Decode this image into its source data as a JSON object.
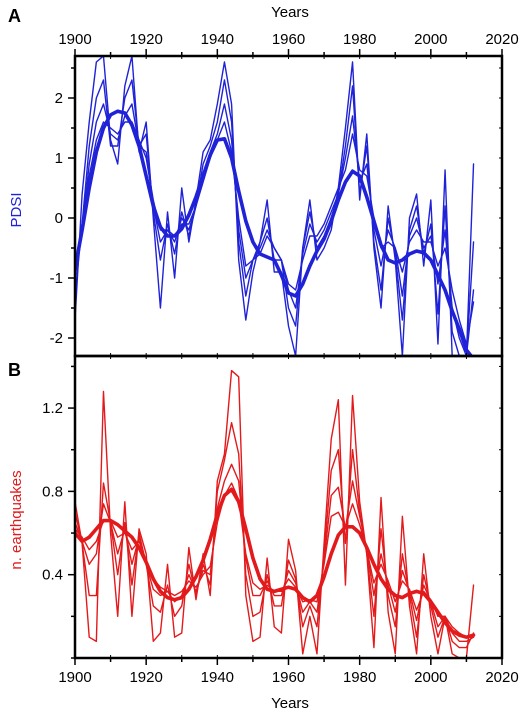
{
  "chart_data": [
    {
      "panel": "A",
      "type": "line",
      "xlabel": "Years",
      "ylabel": "PDSI",
      "xlim": [
        1900,
        2020
      ],
      "ylim": [
        -2.3,
        2.7
      ],
      "x_ticks": [
        1900,
        1920,
        1940,
        1960,
        1980,
        2000,
        2020
      ],
      "y_ticks": [
        -2,
        -1,
        0,
        1,
        2
      ],
      "grid": false,
      "color": "#1f22d6",
      "x": [
        1900,
        1902,
        1904,
        1906,
        1908,
        1910,
        1912,
        1914,
        1916,
        1918,
        1920,
        1922,
        1924,
        1926,
        1928,
        1930,
        1932,
        1934,
        1936,
        1938,
        1940,
        1942,
        1944,
        1946,
        1948,
        1950,
        1952,
        1954,
        1956,
        1958,
        1960,
        1962,
        1964,
        1966,
        1968,
        1970,
        1972,
        1974,
        1976,
        1978,
        1980,
        1982,
        1984,
        1986,
        1988,
        1990,
        1992,
        1994,
        1996,
        1998,
        2000,
        2002,
        2004,
        2006,
        2008,
        2010,
        2012
      ],
      "series": [
        {
          "values": [
            -1.7,
            0.4,
            1.6,
            2.6,
            2.7,
            1.3,
            0.9,
            2.2,
            2.7,
            1.1,
            1.6,
            0.0,
            -1.5,
            0.1,
            -1.0,
            0.5,
            -0.4,
            0.3,
            1.1,
            1.3,
            1.9,
            2.6,
            1.9,
            -0.7,
            -1.7,
            -0.9,
            -0.4,
            0.3,
            -0.9,
            -0.9,
            -1.8,
            -2.3,
            -0.5,
            0.3,
            -0.7,
            -0.5,
            -0.2,
            0.5,
            1.5,
            2.6,
            0.3,
            1.4,
            -0.5,
            -1.5,
            0.2,
            -0.7,
            -2.3,
            0.0,
            0.4,
            -0.8,
            0.3,
            -2.1,
            0.8,
            -2.3,
            -2.3,
            -2.3,
            0.9
          ]
        },
        {
          "values": [
            -1.3,
            -0.1,
            1.2,
            2.0,
            2.3,
            1.2,
            1.2,
            2.0,
            2.3,
            1.2,
            1.4,
            0.1,
            -0.7,
            -0.1,
            -0.6,
            0.1,
            -0.3,
            0.2,
            0.9,
            1.2,
            1.6,
            2.3,
            1.6,
            -0.4,
            -1.3,
            -0.7,
            -0.4,
            0.0,
            -0.7,
            -0.7,
            -1.5,
            -1.8,
            -0.5,
            0.1,
            -0.5,
            -0.3,
            0.0,
            0.4,
            1.2,
            2.2,
            0.4,
            1.2,
            -0.4,
            -1.2,
            0.0,
            -0.6,
            -1.7,
            -0.2,
            0.2,
            -0.6,
            -0.1,
            -1.6,
            0.2,
            -1.9,
            -2.3,
            -2.3,
            -0.4
          ]
        },
        {
          "values": [
            -1.0,
            -0.2,
            0.9,
            1.6,
            1.9,
            1.4,
            1.3,
            1.7,
            1.9,
            1.2,
            1.1,
            0.2,
            -0.4,
            -0.2,
            -0.4,
            0.0,
            -0.2,
            0.2,
            0.7,
            1.1,
            1.4,
            1.9,
            1.3,
            -0.2,
            -1.0,
            -0.7,
            -0.5,
            -0.2,
            -0.5,
            -0.7,
            -1.2,
            -1.5,
            -0.6,
            -0.1,
            -0.4,
            -0.2,
            0.1,
            0.4,
            1.0,
            1.7,
            0.6,
            0.9,
            -0.2,
            -0.8,
            -0.2,
            -0.5,
            -1.3,
            -0.3,
            0.0,
            -0.5,
            -0.3,
            -1.1,
            -0.2,
            -1.5,
            -2.0,
            -2.3,
            -1.2
          ]
        },
        {
          "values": [
            -0.8,
            -0.1,
            0.7,
            1.3,
            1.6,
            1.5,
            1.4,
            1.6,
            1.6,
            1.3,
            1.0,
            0.3,
            -0.2,
            -0.2,
            -0.3,
            -0.1,
            -0.1,
            0.2,
            0.6,
            1.0,
            1.3,
            1.6,
            1.1,
            0.0,
            -0.8,
            -0.7,
            -0.6,
            -0.3,
            -0.5,
            -0.7,
            -1.1,
            -1.2,
            -0.7,
            -0.3,
            -0.3,
            -0.1,
            0.2,
            0.5,
            0.8,
            1.4,
            0.8,
            0.7,
            0.0,
            -0.5,
            -0.4,
            -0.5,
            -0.9,
            -0.4,
            -0.2,
            -0.4,
            -0.4,
            -0.8,
            -0.5,
            -1.2,
            -1.7,
            -2.1,
            -1.4
          ]
        },
        {
          "smooth": true,
          "values": [
            -0.85,
            -0.2,
            0.5,
            1.1,
            1.5,
            1.72,
            1.78,
            1.75,
            1.55,
            1.2,
            0.7,
            0.2,
            -0.15,
            -0.3,
            -0.3,
            -0.18,
            0.05,
            0.35,
            0.7,
            1.05,
            1.3,
            1.32,
            1.0,
            0.45,
            -0.05,
            -0.4,
            -0.6,
            -0.65,
            -0.7,
            -0.95,
            -1.25,
            -1.3,
            -1.1,
            -0.8,
            -0.55,
            -0.35,
            -0.05,
            0.3,
            0.6,
            0.78,
            0.7,
            0.35,
            -0.05,
            -0.45,
            -0.7,
            -0.75,
            -0.7,
            -0.6,
            -0.55,
            -0.58,
            -0.7,
            -0.95,
            -1.2,
            -1.55,
            -1.85,
            -2.2,
            -2.35
          ]
        }
      ]
    },
    {
      "panel": "B",
      "type": "line",
      "xlabel": "Years",
      "ylabel": "n. earthquakes",
      "xlim": [
        1900,
        2020
      ],
      "ylim": [
        0,
        1.45
      ],
      "x_ticks": [
        1900,
        1920,
        1940,
        1960,
        1980,
        2000,
        2020
      ],
      "y_ticks": [
        0.4,
        0.8,
        1.2
      ],
      "grid": false,
      "color": "#e31a1c",
      "x": [
        1900,
        1902,
        1904,
        1906,
        1908,
        1910,
        1912,
        1914,
        1916,
        1918,
        1920,
        1922,
        1924,
        1926,
        1928,
        1930,
        1932,
        1934,
        1936,
        1938,
        1940,
        1942,
        1944,
        1946,
        1948,
        1950,
        1952,
        1954,
        1956,
        1958,
        1960,
        1962,
        1964,
        1966,
        1968,
        1970,
        1972,
        1974,
        1976,
        1978,
        1980,
        1982,
        1984,
        1986,
        1988,
        1990,
        1992,
        1994,
        1996,
        1998,
        2000,
        2002,
        2004,
        2006,
        2008,
        2010,
        2012
      ],
      "series": [
        {
          "values": [
            0.75,
            0.55,
            0.1,
            0.08,
            1.28,
            0.6,
            0.2,
            0.75,
            0.2,
            0.62,
            0.5,
            0.08,
            0.12,
            0.45,
            0.1,
            0.12,
            0.53,
            0.28,
            0.5,
            0.3,
            0.85,
            0.98,
            1.38,
            1.35,
            0.3,
            0.08,
            0.1,
            0.48,
            0.15,
            0.12,
            0.57,
            0.42,
            0.02,
            0.2,
            0.02,
            0.55,
            1.05,
            1.24,
            0.35,
            1.26,
            0.75,
            0.5,
            0.05,
            0.77,
            0.22,
            0.02,
            0.68,
            0.25,
            0.02,
            0.5,
            0.2,
            0.02,
            0.2,
            0.02,
            0.0,
            0.0,
            0.35
          ]
        },
        {
          "values": [
            0.7,
            0.55,
            0.3,
            0.3,
            0.84,
            0.65,
            0.4,
            0.65,
            0.35,
            0.6,
            0.45,
            0.25,
            0.22,
            0.35,
            0.2,
            0.25,
            0.45,
            0.3,
            0.45,
            0.35,
            0.8,
            0.95,
            1.13,
            0.98,
            0.4,
            0.2,
            0.22,
            0.4,
            0.25,
            0.25,
            0.47,
            0.38,
            0.15,
            0.25,
            0.15,
            0.5,
            0.9,
            1.0,
            0.55,
            1.0,
            0.7,
            0.5,
            0.2,
            0.62,
            0.3,
            0.15,
            0.5,
            0.3,
            0.1,
            0.4,
            0.25,
            0.1,
            0.2,
            0.08,
            0.05,
            0.05,
            0.12
          ]
        },
        {
          "values": [
            0.65,
            0.56,
            0.45,
            0.5,
            0.74,
            0.65,
            0.5,
            0.62,
            0.45,
            0.58,
            0.45,
            0.33,
            0.3,
            0.32,
            0.27,
            0.3,
            0.4,
            0.32,
            0.42,
            0.4,
            0.72,
            0.85,
            0.93,
            0.85,
            0.48,
            0.3,
            0.3,
            0.37,
            0.3,
            0.3,
            0.42,
            0.36,
            0.22,
            0.27,
            0.22,
            0.47,
            0.78,
            0.82,
            0.62,
            0.85,
            0.68,
            0.52,
            0.3,
            0.5,
            0.35,
            0.22,
            0.42,
            0.32,
            0.18,
            0.35,
            0.27,
            0.15,
            0.2,
            0.12,
            0.08,
            0.08,
            0.1
          ]
        },
        {
          "values": [
            0.62,
            0.58,
            0.52,
            0.56,
            0.66,
            0.66,
            0.58,
            0.6,
            0.52,
            0.56,
            0.47,
            0.38,
            0.34,
            0.32,
            0.3,
            0.32,
            0.37,
            0.34,
            0.4,
            0.44,
            0.65,
            0.78,
            0.84,
            0.76,
            0.5,
            0.36,
            0.33,
            0.35,
            0.32,
            0.32,
            0.38,
            0.34,
            0.27,
            0.28,
            0.27,
            0.45,
            0.68,
            0.7,
            0.63,
            0.74,
            0.64,
            0.52,
            0.36,
            0.45,
            0.37,
            0.27,
            0.37,
            0.33,
            0.23,
            0.32,
            0.28,
            0.2,
            0.2,
            0.15,
            0.12,
            0.1,
            0.1
          ]
        },
        {
          "smooth": true,
          "values": [
            0.6,
            0.56,
            0.58,
            0.62,
            0.66,
            0.66,
            0.64,
            0.61,
            0.58,
            0.53,
            0.46,
            0.38,
            0.32,
            0.29,
            0.28,
            0.29,
            0.33,
            0.39,
            0.47,
            0.57,
            0.69,
            0.78,
            0.81,
            0.75,
            0.62,
            0.48,
            0.38,
            0.33,
            0.32,
            0.33,
            0.34,
            0.33,
            0.29,
            0.27,
            0.3,
            0.39,
            0.5,
            0.59,
            0.63,
            0.63,
            0.6,
            0.53,
            0.45,
            0.38,
            0.33,
            0.3,
            0.29,
            0.31,
            0.32,
            0.31,
            0.27,
            0.22,
            0.17,
            0.13,
            0.11,
            0.1,
            0.11
          ]
        }
      ]
    }
  ]
}
